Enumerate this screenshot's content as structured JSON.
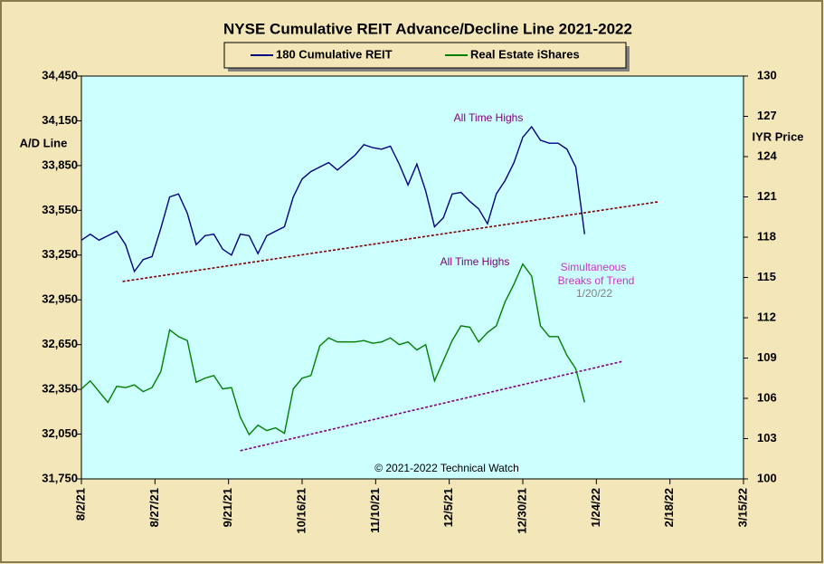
{
  "chart_data": {
    "type": "line",
    "title": "NYSE Cumulative  REIT Advance/Decline  Line 2021-2022",
    "y_label": "A/D Line",
    "y2_label": "IYR Price",
    "annotations": [
      "All Time Highs",
      "All Time Highs",
      "Simultaneous",
      "Breaks of Trend",
      "1/20/22"
    ],
    "credit": "© 2021-2022  Technical  Watch",
    "x": [
      "2021-08-02",
      "2021-08-05",
      "2021-08-08",
      "2021-08-11",
      "2021-08-14",
      "2021-08-17",
      "2021-08-20",
      "2021-08-23",
      "2021-08-26",
      "2021-08-29",
      "2021-09-01",
      "2021-09-04",
      "2021-09-07",
      "2021-09-10",
      "2021-09-13",
      "2021-09-16",
      "2021-09-19",
      "2021-09-22",
      "2021-09-25",
      "2021-09-28",
      "2021-10-01",
      "2021-10-04",
      "2021-10-07",
      "2021-10-10",
      "2021-10-13",
      "2021-10-16",
      "2021-10-19",
      "2021-10-22",
      "2021-10-25",
      "2021-10-28",
      "2021-10-31",
      "2021-11-03",
      "2021-11-06",
      "2021-11-09",
      "2021-11-12",
      "2021-11-15",
      "2021-11-18",
      "2021-11-21",
      "2021-11-24",
      "2021-11-27",
      "2021-11-30",
      "2021-12-03",
      "2021-12-06",
      "2021-12-09",
      "2021-12-12",
      "2021-12-15",
      "2021-12-18",
      "2021-12-21",
      "2021-12-24",
      "2021-12-27",
      "2021-12-30",
      "2022-01-02",
      "2022-01-05",
      "2022-01-08",
      "2022-01-11",
      "2022-01-14",
      "2022-01-17",
      "2022-01-20"
    ],
    "series": [
      {
        "name": "180 Cumulative REIT",
        "color": "#000080",
        "axis": "y",
        "values": [
          33350,
          33390,
          33350,
          33380,
          33410,
          33320,
          33140,
          33220,
          33240,
          33430,
          33640,
          33660,
          33530,
          33320,
          33380,
          33390,
          33290,
          33250,
          33390,
          33380,
          33260,
          33380,
          33410,
          33440,
          33640,
          33760,
          33810,
          33840,
          33870,
          33820,
          33870,
          33920,
          33990,
          33970,
          33960,
          33980,
          33860,
          33720,
          33860,
          33680,
          33440,
          33500,
          33660,
          33670,
          33610,
          33560,
          33460,
          33660,
          33750,
          33870,
          34040,
          34110,
          34020,
          34000,
          34000,
          33960,
          33840,
          33390
        ]
      },
      {
        "name": "Real Estate iShares",
        "color": "#008000",
        "axis": "y2",
        "values": [
          106.7,
          107.3,
          106.5,
          105.7,
          106.9,
          106.8,
          107.0,
          106.5,
          106.8,
          108.0,
          111.1,
          110.6,
          110.3,
          107.2,
          107.5,
          107.7,
          106.7,
          106.8,
          104.6,
          103.3,
          104.0,
          103.6,
          103.8,
          103.4,
          106.7,
          107.5,
          107.7,
          109.9,
          110.5,
          110.2,
          110.2,
          110.2,
          110.3,
          110.1,
          110.2,
          110.5,
          110.0,
          110.2,
          109.6,
          110.0,
          107.3,
          108.8,
          110.3,
          111.4,
          111.3,
          110.2,
          110.9,
          111.4,
          113.2,
          114.5,
          116.0,
          115.1,
          111.4,
          110.6,
          110.6,
          109.2,
          108.2,
          105.7
        ]
      }
    ],
    "trendlines": [
      {
        "x": [
          "2021-08-16",
          "2022-02-14"
        ],
        "values": [
          33073,
          33607
        ],
        "axis": "y",
        "color": "#800000"
      },
      {
        "x": [
          "2021-09-25",
          "2022-02-02"
        ],
        "values": [
          102.1,
          108.76
        ],
        "axis": "y2",
        "color": "#800080"
      }
    ],
    "xlim": [
      "2021-08-02",
      "2022-03-15"
    ],
    "xticks": [
      {
        "value": "2021-08-02",
        "label": "8/2/21"
      },
      {
        "value": "2021-08-27",
        "label": "8/27/21"
      },
      {
        "value": "2021-09-21",
        "label": "9/21/21"
      },
      {
        "value": "2021-10-16",
        "label": "10/16/21"
      },
      {
        "value": "2021-11-10",
        "label": "11/10/21"
      },
      {
        "value": "2021-12-05",
        "label": "12/5/21"
      },
      {
        "value": "2021-12-30",
        "label": "12/30/21"
      },
      {
        "value": "2022-01-24",
        "label": "1/24/22"
      },
      {
        "value": "2022-02-18",
        "label": "2/18/22"
      },
      {
        "value": "2022-03-15",
        "label": "3/15/22"
      }
    ],
    "ylim": [
      31750,
      34450
    ],
    "yticks": [
      {
        "value": 31750,
        "label": "31,750"
      },
      {
        "value": 32050,
        "label": "32,050"
      },
      {
        "value": 32350,
        "label": "32,350"
      },
      {
        "value": 32650,
        "label": "32,650"
      },
      {
        "value": 32950,
        "label": "32,950"
      },
      {
        "value": 33250,
        "label": "33,250"
      },
      {
        "value": 33550,
        "label": "33,550"
      },
      {
        "value": 33850,
        "label": "33,850"
      },
      {
        "value": 34150,
        "label": "34,150"
      },
      {
        "value": 34450,
        "label": "34,450"
      }
    ],
    "y2lim": [
      100,
      130
    ],
    "y2ticks": [
      100,
      103,
      106,
      109,
      112,
      115,
      118,
      121,
      124,
      127,
      130
    ],
    "plot_background": "#ccffff"
  }
}
